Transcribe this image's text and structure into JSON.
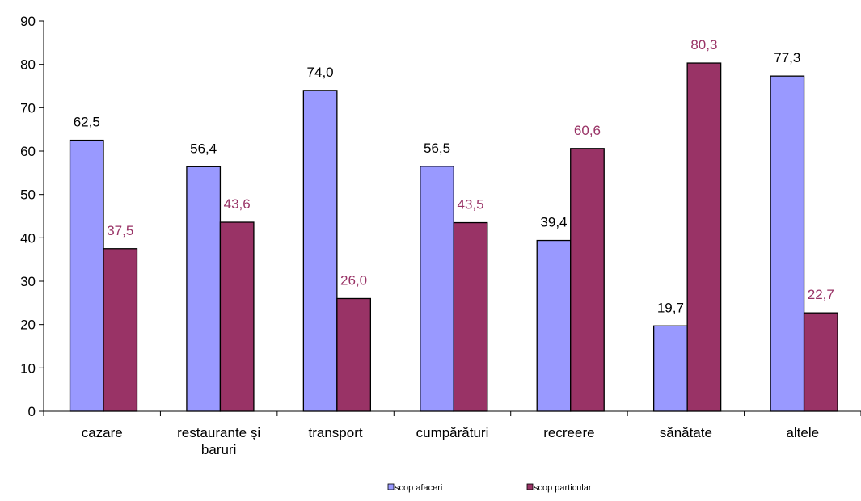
{
  "chart_data": {
    "type": "bar",
    "categories": [
      [
        "cazare"
      ],
      [
        "restaurante și",
        "baruri"
      ],
      [
        "transport"
      ],
      [
        "cumpărături"
      ],
      [
        "recreere"
      ],
      [
        "sănătate"
      ],
      [
        "altele"
      ]
    ],
    "series": [
      {
        "name": "scop afaceri",
        "values": [
          62.5,
          56.4,
          74.0,
          56.5,
          39.4,
          19.7,
          77.3
        ],
        "labels": [
          "62,5",
          "56,4",
          "74,0",
          "56,5",
          "39,4",
          "19,7",
          "77,3"
        ],
        "color": "#9999ff",
        "label_color": "#000000"
      },
      {
        "name": "scop particular",
        "values": [
          37.5,
          43.6,
          26.0,
          43.5,
          60.6,
          80.3,
          22.7
        ],
        "labels": [
          "37,5",
          "43,6",
          "26,0",
          "43,5",
          "60,6",
          "80,3",
          "22,7"
        ],
        "color": "#993366",
        "label_color": "#993366"
      }
    ],
    "ylim": [
      0,
      90
    ],
    "yticks": [
      "0",
      "10",
      "20",
      "30",
      "40",
      "50",
      "60",
      "70",
      "80",
      "90"
    ],
    "grid": false,
    "legend_position": "bottom"
  }
}
